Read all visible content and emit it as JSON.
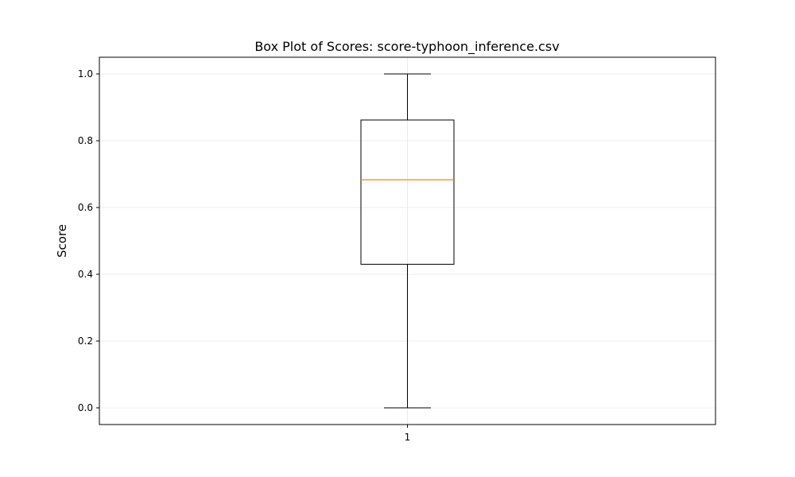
{
  "chart_data": {
    "type": "box",
    "title": "Box Plot of Scores: score-typhoon_inference.csv",
    "xlabel": "",
    "ylabel": "Score",
    "categories": [
      "1"
    ],
    "boxes": [
      {
        "category": "1",
        "whisker_low": 0.0,
        "q1": 0.43,
        "median": 0.683,
        "q3": 0.862,
        "whisker_high": 1.0
      }
    ],
    "ylim": [
      -0.05,
      1.05
    ],
    "yticks": [
      0.0,
      0.2,
      0.4,
      0.6,
      0.8,
      1.0
    ],
    "ytick_labels": [
      "0.0",
      "0.2",
      "0.4",
      "0.6",
      "0.8",
      "1.0"
    ],
    "grid": true,
    "colors": {
      "box": "#000000",
      "median": "#ff7f0e",
      "grid": "#e6e6e6"
    }
  }
}
